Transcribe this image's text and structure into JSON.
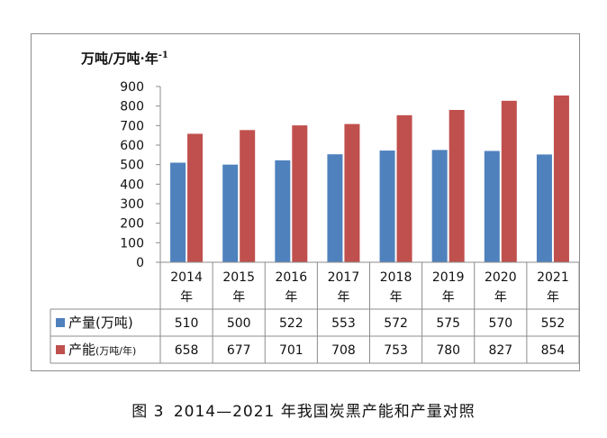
{
  "unit_label": "万吨/万吨·年-1",
  "caption": {
    "figure_number": "图 3",
    "title": "2014—2021 年我国炭黑产能和产量对照"
  },
  "colors": {
    "production": "#4f81bd",
    "capacity": "#c0504d"
  },
  "chart_data": {
    "type": "bar",
    "title": "",
    "ylabel": "万吨/万吨·年-1",
    "xlabel": "",
    "ylim": [
      0,
      900
    ],
    "yticks": [
      0,
      100,
      200,
      300,
      400,
      500,
      600,
      700,
      800,
      900
    ],
    "grid": false,
    "legend": "data-table-left",
    "categories": [
      {
        "year": "2014",
        "unit": "年"
      },
      {
        "year": "2015",
        "unit": "年"
      },
      {
        "year": "2016",
        "unit": "年"
      },
      {
        "year": "2017",
        "unit": "年"
      },
      {
        "year": "2018",
        "unit": "年"
      },
      {
        "year": "2019",
        "unit": "年"
      },
      {
        "year": "2020",
        "unit": "年"
      },
      {
        "year": "2021",
        "unit": "年"
      }
    ],
    "series": [
      {
        "name": "产量",
        "unit": "(万吨)",
        "values": [
          510,
          500,
          522,
          553,
          572,
          575,
          570,
          552
        ]
      },
      {
        "name": "产能",
        "unit": "(万吨/年)",
        "values": [
          658,
          677,
          701,
          708,
          753,
          780,
          827,
          854
        ]
      }
    ]
  }
}
